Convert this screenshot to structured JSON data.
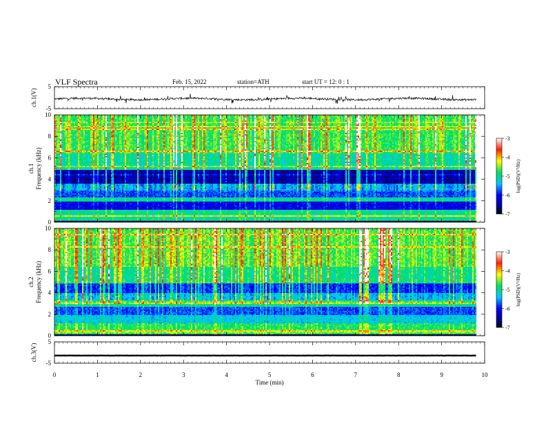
{
  "header": {
    "title": "VLF  Spectra",
    "date": "Feb. 15, 2022",
    "station": "station=ATH",
    "start": "start  UT  =    12: 0   : 1"
  },
  "chart_data": [
    {
      "type": "line",
      "name": "ch1-waveform",
      "ylabel": "ch.1(V)",
      "ylim": [
        -5,
        5
      ],
      "yticks": [
        "5",
        "-5"
      ],
      "xlim": [
        0,
        10
      ],
      "data_end_min": 9.8,
      "baseline": -0.6,
      "color": "#000000"
    },
    {
      "type": "heatmap",
      "name": "ch1-spectrogram",
      "ylabel": "ch.1\nFrequency  (kHz)",
      "ylim": [
        0,
        10
      ],
      "yticks": [
        "0",
        "2",
        "4",
        "6",
        "8",
        "10"
      ],
      "xlim": [
        0,
        10
      ],
      "data_end_min": 9.8,
      "colorbar": {
        "label": "log(PSD)(V²/Hz)",
        "min": -7,
        "max": -3,
        "ticks": [
          "-3",
          "-4",
          "-5",
          "-6",
          "-7"
        ]
      }
    },
    {
      "type": "heatmap",
      "name": "ch2-spectrogram",
      "ylabel": "ch.2\nFrequency  (kHz)",
      "ylim": [
        0,
        10
      ],
      "yticks": [
        "0",
        "2",
        "4",
        "6",
        "8",
        "10"
      ],
      "xlim": [
        0,
        10
      ],
      "data_end_min": 9.8,
      "colorbar": {
        "label": "log(PSD)(V²/Hz)",
        "min": -7,
        "max": -3,
        "ticks": [
          "-3",
          "-4",
          "-5",
          "-6",
          "-7"
        ]
      }
    },
    {
      "type": "line",
      "name": "ch3-waveform",
      "ylabel": "ch.3(V)",
      "ylim": [
        -5,
        5
      ],
      "yticks": [
        "5",
        "-5"
      ],
      "xlim": [
        0,
        10
      ],
      "data_end_min": 9.8,
      "baseline": -1.4,
      "color": "#000000"
    }
  ],
  "x_axis": {
    "label": "Time  (min)",
    "ticks": [
      "0",
      "1",
      "2",
      "3",
      "4",
      "5",
      "6",
      "7",
      "8",
      "9",
      "10"
    ]
  }
}
